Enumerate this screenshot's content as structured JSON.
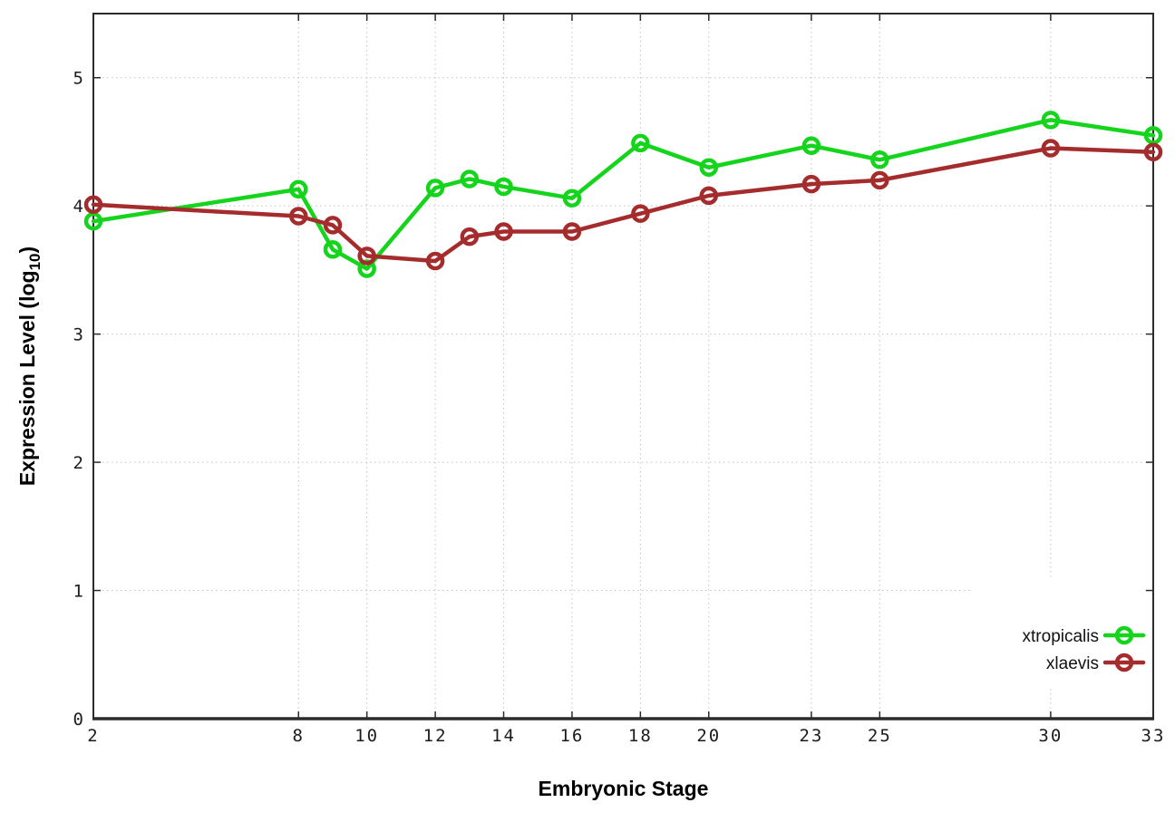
{
  "chart_data": {
    "type": "line",
    "title": "",
    "xlabel": "Embryonic Stage",
    "ylabel_parts": {
      "prefix": "Expression Level (log",
      "subscript": "10",
      "suffix": ")"
    },
    "x": [
      2,
      8,
      9,
      10,
      12,
      13,
      14,
      16,
      18,
      20,
      23,
      25,
      30,
      33
    ],
    "xticks": [
      2,
      8,
      10,
      12,
      14,
      16,
      18,
      20,
      23,
      25,
      30,
      33
    ],
    "yticks": [
      0,
      1,
      2,
      3,
      4,
      5
    ],
    "xlim": [
      2,
      33
    ],
    "ylim": [
      0,
      5.5
    ],
    "grid": true,
    "legend_position": "bottom-right-inside",
    "series": [
      {
        "name": "xtropicalis",
        "color": "#14d41c",
        "values": [
          3.88,
          4.13,
          3.66,
          3.51,
          4.14,
          4.21,
          4.15,
          4.06,
          4.49,
          4.3,
          4.47,
          4.36,
          4.67,
          4.55
        ]
      },
      {
        "name": "xlaevis",
        "color": "#a52c2c",
        "values": [
          4.01,
          3.92,
          3.85,
          3.61,
          3.57,
          3.76,
          3.8,
          3.8,
          3.94,
          4.08,
          4.17,
          4.2,
          4.45,
          4.42
        ]
      }
    ],
    "style": {
      "grid_color": "#c4c4c4",
      "border_color": "#2b2b2b",
      "tick_label_color": "#1c1c1c",
      "legend_background": "#ffffff",
      "line_width": 4.5,
      "marker_radius": 8
    }
  }
}
